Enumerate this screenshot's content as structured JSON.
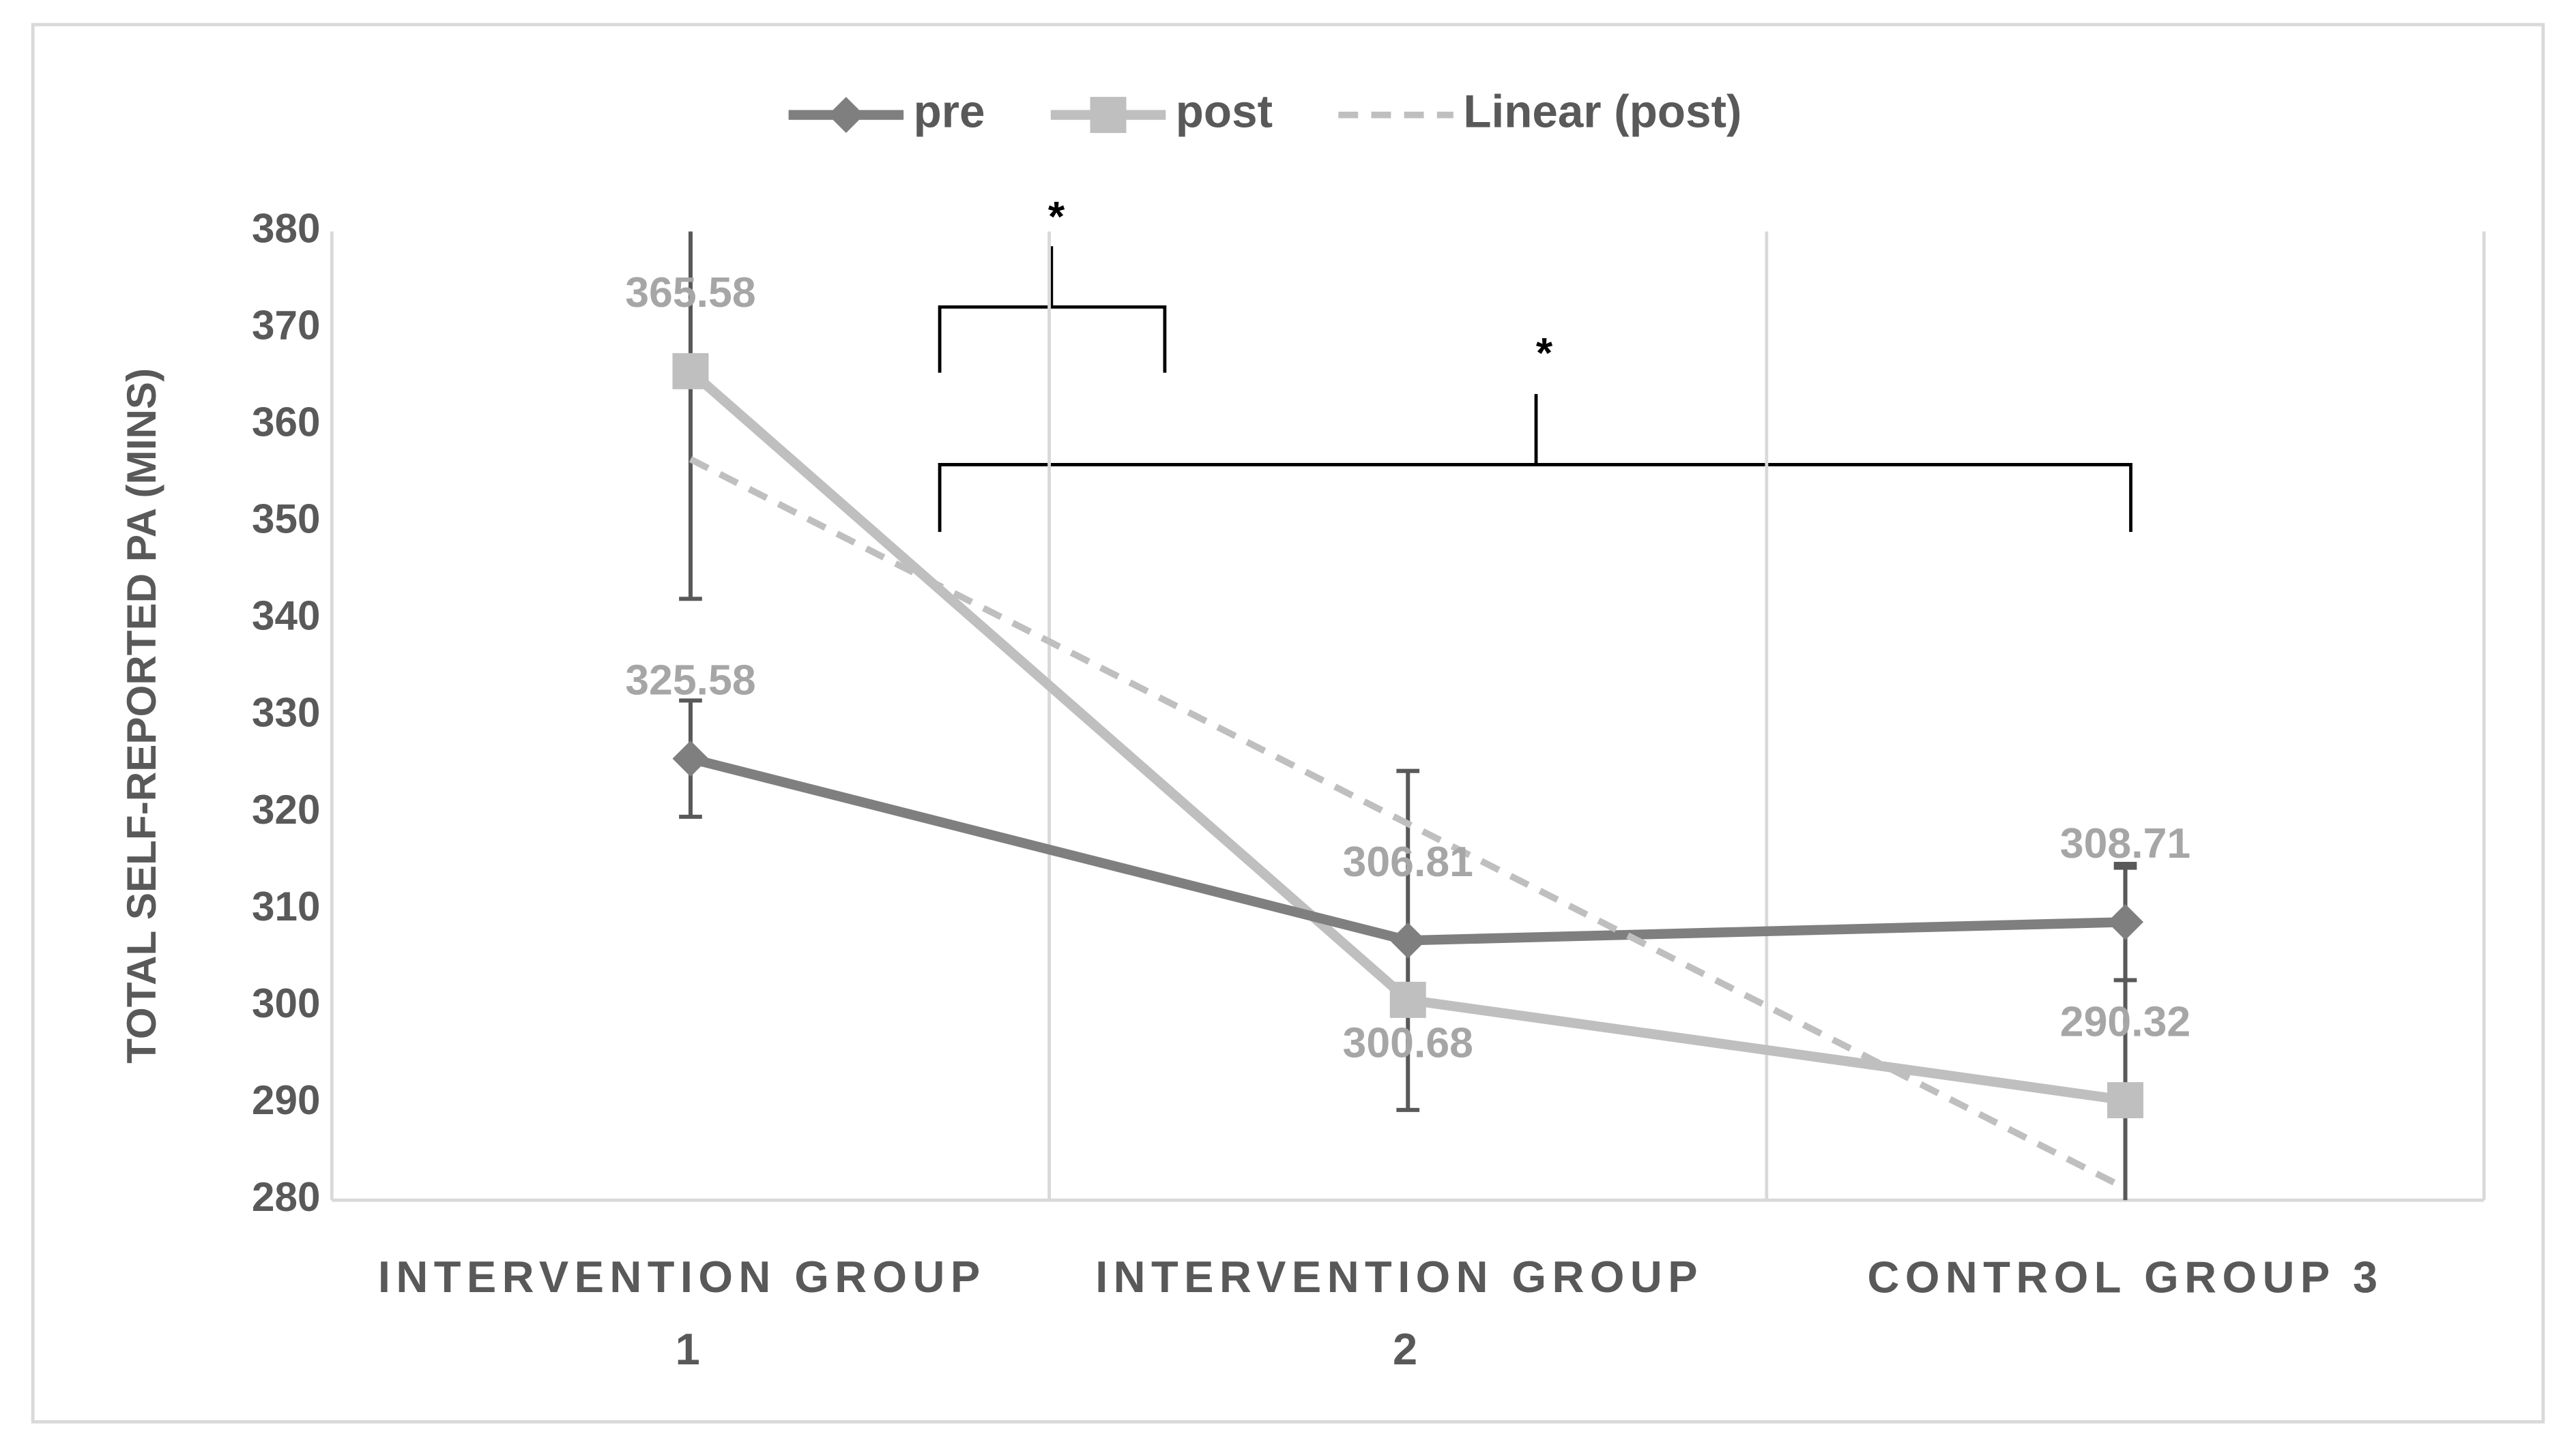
{
  "chart_data": {
    "type": "line",
    "y_axis_label": "TOTAL SELF-REPORTED PA (MINS)",
    "categories": [
      "INTERVENTION GROUP 1",
      "INTERVENTION GROUP 2",
      "CONTROL GROUP 3"
    ],
    "series": [
      {
        "name": "pre",
        "color": "#7f7f7f",
        "marker": "diamond",
        "values": [
          325.58,
          306.81,
          308.71
        ],
        "errors": [
          6,
          17.5,
          6
        ],
        "label_positions": [
          "above",
          "above",
          "above"
        ]
      },
      {
        "name": "post",
        "color": "#bfbfbf",
        "marker": "square",
        "values": [
          365.58,
          300.68,
          290.32
        ],
        "errors": [
          23.5,
          null,
          24
        ],
        "label_positions": [
          "above",
          "below",
          "above"
        ]
      },
      {
        "name": "Linear (post)",
        "color": "#bfbfbf",
        "dashed": true,
        "values": [
          356.49,
          318.86,
          281.23
        ]
      }
    ],
    "annotations": [
      "*",
      "*"
    ],
    "ylim": [
      280,
      380
    ],
    "yticks": [
      280,
      290,
      300,
      310,
      320,
      330,
      340,
      350,
      360,
      370,
      380
    ],
    "legend": "top"
  }
}
